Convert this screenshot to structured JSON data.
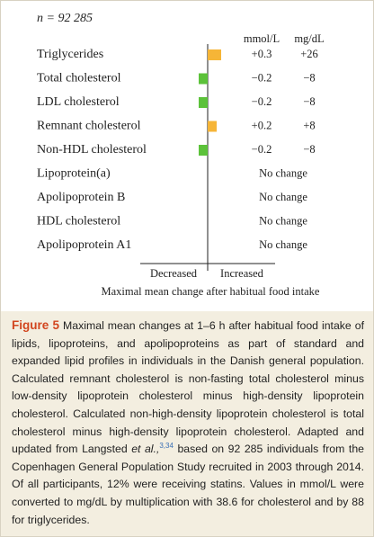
{
  "chart_data": {
    "type": "bar",
    "orientation": "horizontal",
    "title": "n = 92 285",
    "column_headers": [
      "mmol/L",
      "mg/dL"
    ],
    "categories": [
      "Triglycerides",
      "Total cholesterol",
      "LDL cholesterol",
      "Remnant cholesterol",
      "Non-HDL cholesterol",
      "Lipoprotein(a)",
      "Apolipoprotein B",
      "HDL cholesterol",
      "Apolipoprotein A1"
    ],
    "values": [
      0.3,
      -0.2,
      -0.2,
      0.2,
      -0.2,
      null,
      null,
      null,
      null
    ],
    "value_labels": [
      "+0.3",
      "−0.2",
      "−0.2",
      "+0.2",
      "−0.2",
      null,
      null,
      null,
      null
    ],
    "mgdl_values": [
      26,
      -8,
      -8,
      8,
      -8,
      null,
      null,
      null,
      null
    ],
    "mgdl_labels": [
      "+26",
      "−8",
      "−8",
      "+8",
      "−8",
      null,
      null,
      null,
      null
    ],
    "no_change_labels": [
      null,
      null,
      null,
      null,
      null,
      "No change",
      "No change",
      "No change",
      "No change"
    ],
    "increase_color": "#f6b537",
    "decrease_color": "#5cc23a",
    "xlim": [
      -1.5,
      1.5
    ],
    "direction_labels": [
      "Decreased",
      "Increased"
    ],
    "x_label": "Maximal mean change after habitual food intake"
  },
  "caption": {
    "label": "Figure 5",
    "text": "Maximal mean changes at 1–6 h after habitual food intake of lipids, lipoproteins, and apolipoproteins as part of standard and expanded lipid profiles in individuals in the Danish general population. Calculated remnant cholesterol is non-fasting total cholesterol minus low-density lipoprotein cholesterol minus high-density lipoprotein cholesterol. Calculated non-high-density lipoprotein cholesterol is total cholesterol minus high-density lipoprotein cholesterol. Adapted and updated from Langsted ",
    "italic": "et al.,",
    "reference": "3,34",
    "text_after": "based on 92 285 individuals from the Copenhagen General Population Study recruited in 2003 through 2014. Of all participants, 12% were receiving statins. Values in mmol/L were converted to mg/dL by multiplication with 38.6 for cholesterol and by 88 for triglycerides."
  }
}
